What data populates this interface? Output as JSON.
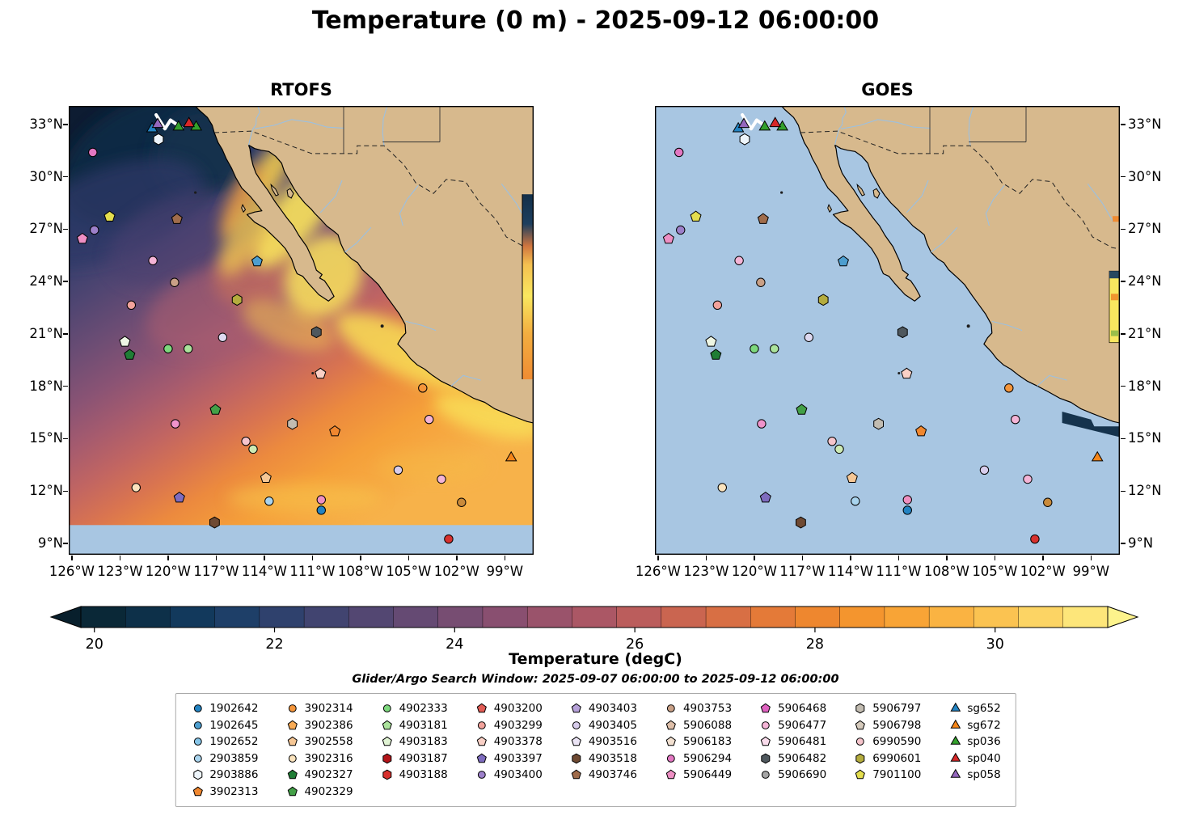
{
  "title": "Temperature (0 m) - 2025-09-12 06:00:00",
  "subtitle": "Glider/Argo Search Window: 2025-09-07 06:00:00 to 2025-09-12 06:00:00",
  "panels": [
    {
      "title": "RTOFS"
    },
    {
      "title": "GOES"
    }
  ],
  "axes": {
    "lat_ticks": [
      "33°N",
      "30°N",
      "27°N",
      "24°N",
      "21°N",
      "18°N",
      "15°N",
      "12°N",
      "9°N"
    ],
    "lon_ticks": [
      "126°W",
      "123°W",
      "120°W",
      "117°W",
      "114°W",
      "111°W",
      "108°W",
      "105°W",
      "102°W",
      "99°W"
    ]
  },
  "colorbar": {
    "label": "Temperature (degC)",
    "ticks": [
      "20",
      "22",
      "24",
      "26",
      "28",
      "30"
    ],
    "colors": [
      "#0a2837",
      "#0d3049",
      "#12395c",
      "#1e3f68",
      "#2f416d",
      "#414470",
      "#534772",
      "#654a73",
      "#774d72",
      "#894f70",
      "#9a536b",
      "#ab5765",
      "#bb5d5c",
      "#ca6550",
      "#d86f44",
      "#e47a38",
      "#ee872f",
      "#f4952e",
      "#f8a436",
      "#fab342",
      "#fbc351",
      "#fcd464",
      "#fde67a"
    ],
    "under_color": "#081f2c",
    "over_color": "#fdf38c"
  },
  "map_colors": {
    "land": "#d7b98d",
    "ocean_nodata": "#a8c6e2",
    "coastline": "#000000",
    "river": "#9cc0e0"
  },
  "legend": {
    "columns": [
      [
        {
          "id": "1902642",
          "shape": "circle",
          "color": "#2383c2"
        },
        {
          "id": "1902645",
          "shape": "circle",
          "color": "#4d9ecf"
        },
        {
          "id": "1902652",
          "shape": "circle",
          "color": "#86c5e8"
        },
        {
          "id": "2903859",
          "shape": "circle",
          "color": "#a9d4ee"
        },
        {
          "id": "2903886",
          "shape": "hexagon",
          "color": "#eef5fb"
        },
        {
          "id": "3902313",
          "shape": "pentagon",
          "color": "#f0872f"
        }
      ],
      [
        {
          "id": "3902314",
          "shape": "circle",
          "color": "#f5953a"
        },
        {
          "id": "3902386",
          "shape": "pentagon",
          "color": "#f8ab55"
        },
        {
          "id": "3902558",
          "shape": "pentagon",
          "color": "#f6c795"
        },
        {
          "id": "3902316",
          "shape": "circle",
          "color": "#fbe3bd"
        },
        {
          "id": "4902327",
          "shape": "pentagon",
          "color": "#1f7d35"
        },
        {
          "id": "4902329",
          "shape": "pentagon",
          "color": "#43a047"
        }
      ],
      [
        {
          "id": "4902333",
          "shape": "circle",
          "color": "#7dd87d"
        },
        {
          "id": "4903181",
          "shape": "pentagon",
          "color": "#abe39c"
        },
        {
          "id": "4903183",
          "shape": "pentagon",
          "color": "#e0f3d3"
        },
        {
          "id": "4903187",
          "shape": "hexagon",
          "color": "#b3151a"
        },
        {
          "id": "4903188",
          "shape": "hexagon",
          "color": "#d7312e"
        }
      ],
      [
        {
          "id": "4903200",
          "shape": "pentagon",
          "color": "#e25c55"
        },
        {
          "id": "4903299",
          "shape": "circle",
          "color": "#f2a29b"
        },
        {
          "id": "4903378",
          "shape": "pentagon",
          "color": "#f9d0c6"
        },
        {
          "id": "4903397",
          "shape": "pentagon",
          "color": "#7e6cbf"
        },
        {
          "id": "4903400",
          "shape": "circle",
          "color": "#9d80ca"
        }
      ],
      [
        {
          "id": "4903403",
          "shape": "pentagon",
          "color": "#b6a1d9"
        },
        {
          "id": "4903405",
          "shape": "circle",
          "color": "#d8cdec"
        },
        {
          "id": "4903516",
          "shape": "pentagon",
          "color": "#ebe4f5"
        },
        {
          "id": "4903518",
          "shape": "hexagon",
          "color": "#6f4a33"
        },
        {
          "id": "4903746",
          "shape": "pentagon",
          "color": "#a06c4b"
        }
      ],
      [
        {
          "id": "4903753",
          "shape": "circle",
          "color": "#c9a086"
        },
        {
          "id": "5906088",
          "shape": "pentagon",
          "color": "#debfa9"
        },
        {
          "id": "5906183",
          "shape": "pentagon",
          "color": "#f2e0d0"
        },
        {
          "id": "5906294",
          "shape": "circle",
          "color": "#e377c2"
        },
        {
          "id": "5906449",
          "shape": "pentagon",
          "color": "#ee8fc4"
        }
      ],
      [
        {
          "id": "5906468",
          "shape": "pentagon",
          "color": "#df62c0"
        },
        {
          "id": "5906477",
          "shape": "circle",
          "color": "#f4b4d6"
        },
        {
          "id": "5906481",
          "shape": "pentagon",
          "color": "#fadcec"
        },
        {
          "id": "5906482",
          "shape": "hexagon",
          "color": "#4f585e"
        },
        {
          "id": "5906690",
          "shape": "circle",
          "color": "#a5a5a5"
        }
      ],
      [
        {
          "id": "5906797",
          "shape": "hexagon",
          "color": "#c2bcb1"
        },
        {
          "id": "5906798",
          "shape": "pentagon",
          "color": "#d5cabc"
        },
        {
          "id": "6990590",
          "shape": "circle",
          "color": "#f6c5cc"
        },
        {
          "id": "6990601",
          "shape": "hexagon",
          "color": "#b4ac3e"
        },
        {
          "id": "7901100",
          "shape": "pentagon",
          "color": "#e4de4e"
        }
      ],
      [
        {
          "id": "sg652",
          "shape": "triangle",
          "color": "#2383c2"
        },
        {
          "id": "sg672",
          "shape": "triangle",
          "color": "#f58518"
        },
        {
          "id": "sp036",
          "shape": "triangle",
          "color": "#33a02c"
        },
        {
          "id": "sp040",
          "shape": "triangle",
          "color": "#d62728"
        },
        {
          "id": "sp058",
          "shape": "triangle",
          "color": "#9467bd"
        }
      ]
    ]
  },
  "chart_data": {
    "type": "heatmap",
    "description": "Two-panel sea-surface temperature (0 m) maps (RTOFS model vs GOES satellite) over the eastern Pacific / Baja California region, with glider and Argo float positions overlaid",
    "extent": {
      "lon_min": -126.2,
      "lon_max": -97.2,
      "lat_min": 8.35,
      "lat_max": 34.06
    },
    "lon_tick_values": [
      -126,
      -123,
      -120,
      -117,
      -114,
      -111,
      -108,
      -105,
      -102,
      -99
    ],
    "lat_tick_values": [
      33,
      30,
      27,
      24,
      21,
      18,
      15,
      12,
      9
    ],
    "colorbar_range": [
      19.85,
      31.25
    ],
    "colorbar_tick_values": [
      20,
      22,
      24,
      26,
      28,
      30
    ],
    "rtofs_field_summary": "Cold (~20 degC, dark navy) northwest of Baja California grading through purple/magenta (~23-26 degC) to warm orange/yellow (~29-31 degC) in the Gulf of California and along the tropical Mexican coast; model domain ends at 10N (no-data blue below)",
    "goes_field_summary": "Mostly no-data (flat light blue) over the Pacific; small warm (yellow/orange) strip at the eastern edge (Gulf of Mexico) and a dark cold patch near the southern coast",
    "track": [
      [
        -120.75,
        33.55
      ],
      [
        -120.2,
        32.75
      ],
      [
        -119.85,
        33.25
      ],
      [
        -119.15,
        32.8
      ]
    ],
    "markers": [
      {
        "lon": -124.7,
        "lat": 31.4,
        "shape": "circle",
        "color": "#e377c2"
      },
      {
        "lon": -120.6,
        "lat": 32.15,
        "shape": "hexagon",
        "color": "#eef5fb"
      },
      {
        "lon": -123.65,
        "lat": 27.72,
        "shape": "pentagon",
        "color": "#e4de4e"
      },
      {
        "lon": -119.45,
        "lat": 27.58,
        "shape": "pentagon",
        "color": "#a06c4b"
      },
      {
        "lon": -124.6,
        "lat": 26.95,
        "shape": "circle",
        "color": "#9d80ca"
      },
      {
        "lon": -125.35,
        "lat": 26.45,
        "shape": "pentagon",
        "color": "#ee8fc4"
      },
      {
        "lon": -120.95,
        "lat": 25.2,
        "shape": "circle",
        "color": "#f4b4d6"
      },
      {
        "lon": -119.6,
        "lat": 23.95,
        "shape": "circle",
        "color": "#c9a086"
      },
      {
        "lon": -114.45,
        "lat": 25.15,
        "shape": "pentagon",
        "color": "#4d9ecf"
      },
      {
        "lon": -122.3,
        "lat": 22.65,
        "shape": "circle",
        "color": "#f2a29b"
      },
      {
        "lon": -115.7,
        "lat": 22.95,
        "shape": "hexagon",
        "color": "#b4ac3e"
      },
      {
        "lon": -110.75,
        "lat": 21.1,
        "shape": "hexagon",
        "color": "#4f585e"
      },
      {
        "lon": -116.6,
        "lat": 20.8,
        "shape": "circle",
        "color": "#ded9f0"
      },
      {
        "lon": -120.0,
        "lat": 20.15,
        "shape": "circle",
        "color": "#7dd87d"
      },
      {
        "lon": -118.75,
        "lat": 20.15,
        "shape": "circle",
        "color": "#abe39c"
      },
      {
        "lon": -122.4,
        "lat": 19.8,
        "shape": "pentagon",
        "color": "#1f7d35"
      },
      {
        "lon": -122.7,
        "lat": 20.55,
        "shape": "pentagon",
        "color": "#eef6e4"
      },
      {
        "lon": -110.5,
        "lat": 18.72,
        "shape": "pentagon",
        "color": "#f9d0c6"
      },
      {
        "lon": -104.12,
        "lat": 17.9,
        "shape": "circle",
        "color": "#f5953a"
      },
      {
        "lon": -117.05,
        "lat": 16.65,
        "shape": "pentagon",
        "color": "#43a047"
      },
      {
        "lon": -119.55,
        "lat": 15.85,
        "shape": "circle",
        "color": "#ef93cb"
      },
      {
        "lon": -112.25,
        "lat": 15.85,
        "shape": "hexagon",
        "color": "#c2bcb1"
      },
      {
        "lon": -103.72,
        "lat": 16.1,
        "shape": "circle",
        "color": "#f4b4d6"
      },
      {
        "lon": -115.15,
        "lat": 14.85,
        "shape": "circle",
        "color": "#f6c5cc"
      },
      {
        "lon": -114.7,
        "lat": 14.4,
        "shape": "circle",
        "color": "#cdeab4"
      },
      {
        "lon": -109.6,
        "lat": 15.42,
        "shape": "pentagon",
        "color": "#f0872f"
      },
      {
        "lon": -98.6,
        "lat": 13.9,
        "shape": "triangle",
        "color": "#f58518"
      },
      {
        "lon": -105.65,
        "lat": 13.2,
        "shape": "circle",
        "color": "#d8cdec"
      },
      {
        "lon": -113.9,
        "lat": 12.75,
        "shape": "pentagon",
        "color": "#f6c795"
      },
      {
        "lon": -122.0,
        "lat": 12.2,
        "shape": "circle",
        "color": "#fbe3bd"
      },
      {
        "lon": -119.3,
        "lat": 11.62,
        "shape": "pentagon",
        "color": "#7e6cbf"
      },
      {
        "lon": -102.95,
        "lat": 12.68,
        "shape": "circle",
        "color": "#f4b4d6"
      },
      {
        "lon": -113.7,
        "lat": 11.42,
        "shape": "circle",
        "color": "#a9d4ee"
      },
      {
        "lon": -110.45,
        "lat": 11.5,
        "shape": "circle",
        "color": "#ef8fc0"
      },
      {
        "lon": -110.45,
        "lat": 10.9,
        "shape": "circle",
        "color": "#2383c2"
      },
      {
        "lon": -101.7,
        "lat": 11.35,
        "shape": "circle",
        "color": "#c98a3a"
      },
      {
        "lon": -117.1,
        "lat": 10.2,
        "shape": "hexagon",
        "color": "#6f4a33"
      },
      {
        "lon": -102.5,
        "lat": 9.25,
        "shape": "circle",
        "color": "#d7312e"
      },
      {
        "lon": -121.0,
        "lat": 32.75,
        "shape": "triangle",
        "color": "#2383c2"
      },
      {
        "lon": -120.65,
        "lat": 33.0,
        "shape": "triangle",
        "color": "#9467bd"
      },
      {
        "lon": -119.35,
        "lat": 32.85,
        "shape": "triangle",
        "color": "#33a02c"
      },
      {
        "lon": -118.25,
        "lat": 32.85,
        "shape": "triangle",
        "color": "#33a02c"
      },
      {
        "lon": -118.7,
        "lat": 33.05,
        "shape": "triangle",
        "color": "#d62728"
      }
    ]
  }
}
